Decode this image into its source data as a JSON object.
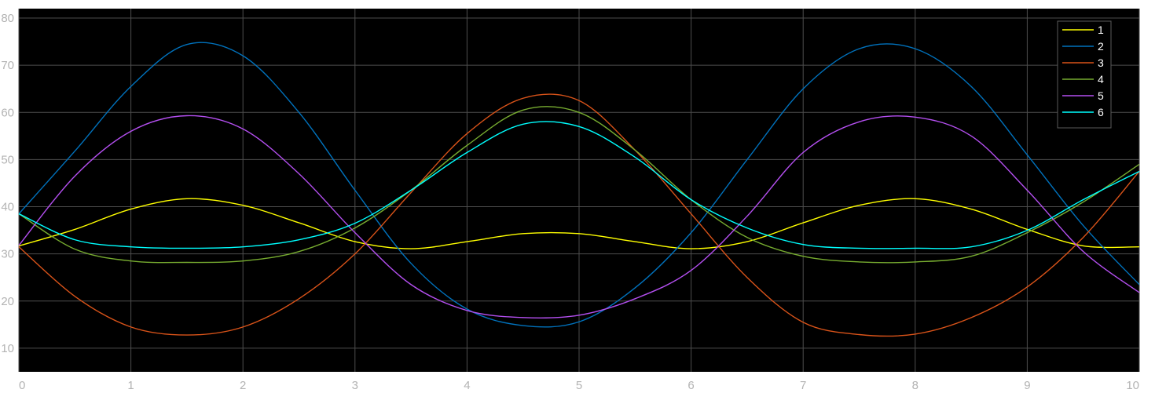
{
  "chart_data": {
    "type": "line",
    "title": "",
    "xlabel": "",
    "ylabel": "",
    "xlim": [
      0,
      10
    ],
    "ylim": [
      5,
      82
    ],
    "x_ticks": [
      "0",
      "1",
      "2",
      "3",
      "4",
      "5",
      "6",
      "7",
      "8",
      "9",
      "10"
    ],
    "y_ticks": [
      "10",
      "20",
      "30",
      "40",
      "50",
      "60",
      "70",
      "80"
    ],
    "grid": true,
    "legend_position": "top-right",
    "background": "#000000",
    "gridColor": "#4d4d4d",
    "x": [
      0,
      0.5,
      1,
      1.5,
      2,
      2.5,
      3,
      3.5,
      4,
      4.5,
      5,
      5.5,
      6,
      6.5,
      7,
      7.5,
      8,
      8.5,
      9,
      9.5,
      10
    ],
    "series": [
      {
        "name": "1",
        "color": "#ffff00",
        "values": [
          31.7,
          35.2,
          39.5,
          41.7,
          40.3,
          36.6,
          32.6,
          31.1,
          32.6,
          34.3,
          34.3,
          32.6,
          31.1,
          32.6,
          36.6,
          40.3,
          41.7,
          39.5,
          35.2,
          31.7,
          31.5
        ]
      },
      {
        "name": "2",
        "color": "#0072bd",
        "values": [
          38.5,
          51.8,
          65.5,
          74.4,
          72.0,
          60.0,
          43.5,
          28.0,
          18.3,
          14.8,
          15.6,
          22.8,
          34.5,
          50.0,
          65.0,
          73.5,
          73.5,
          65.5,
          51.0,
          36.0,
          23.5
        ]
      },
      {
        "name": "3",
        "color": "#d95319",
        "values": [
          31.5,
          21.0,
          14.5,
          12.8,
          14.5,
          20.5,
          30.0,
          43.0,
          55.5,
          63.0,
          62.5,
          52.0,
          38.5,
          25.0,
          15.5,
          12.9,
          13.0,
          16.5,
          23.0,
          33.5,
          47.5
        ]
      },
      {
        "name": "4",
        "color": "#77ac30",
        "values": [
          38.5,
          31.0,
          28.5,
          28.2,
          28.5,
          30.5,
          35.5,
          43.5,
          53.0,
          60.5,
          60.0,
          52.0,
          41.5,
          33.5,
          29.5,
          28.3,
          28.3,
          29.5,
          34.5,
          41.0,
          49.0
        ]
      },
      {
        "name": "5",
        "color": "#b44ff0",
        "values": [
          31.8,
          46.5,
          56.0,
          59.3,
          56.5,
          47.0,
          34.5,
          23.5,
          18.0,
          16.5,
          17.0,
          20.5,
          26.5,
          38.0,
          51.5,
          58.0,
          59.0,
          55.0,
          43.5,
          30.5,
          21.8
        ]
      },
      {
        "name": "6",
        "color": "#00ffff",
        "values": [
          38.5,
          33.0,
          31.5,
          31.2,
          31.5,
          33.0,
          36.5,
          43.5,
          51.5,
          57.5,
          57.0,
          50.5,
          41.5,
          35.5,
          32.0,
          31.2,
          31.2,
          31.5,
          35.0,
          41.5,
          47.5
        ]
      }
    ]
  }
}
